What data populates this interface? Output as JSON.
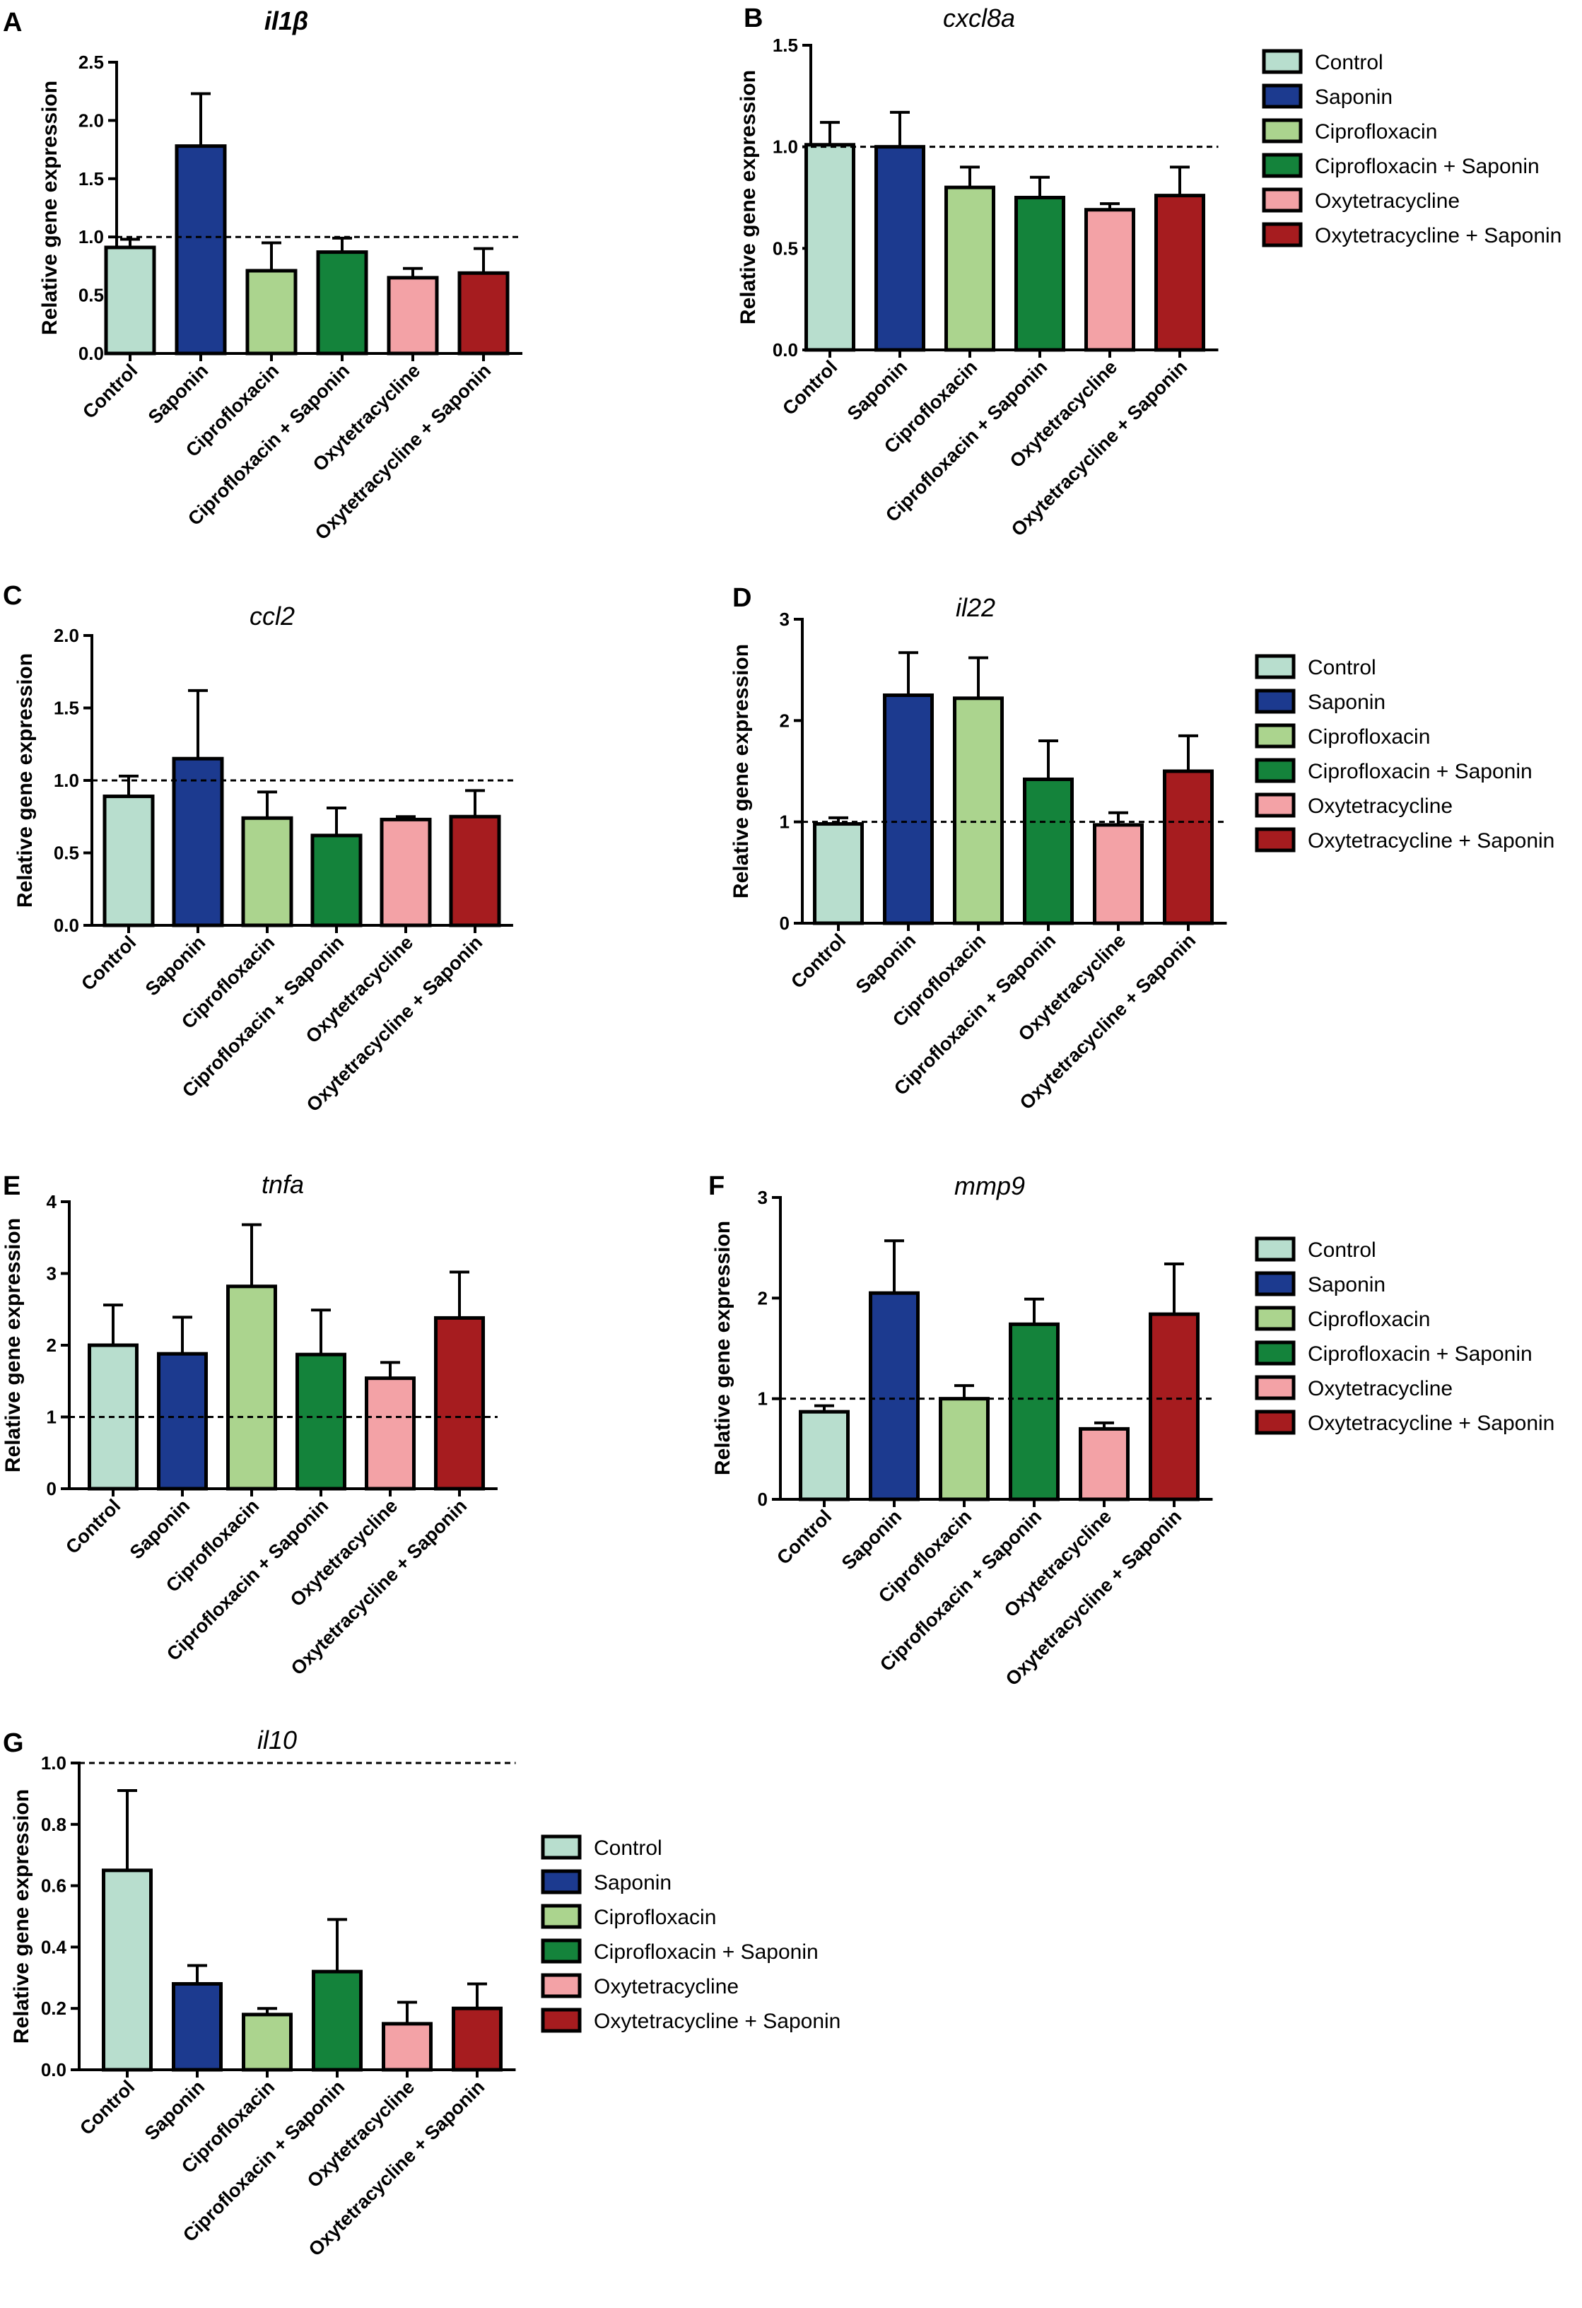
{
  "figure": {
    "colors": {
      "Control": "#b8dece",
      "Saponin": "#1c3a8f",
      "Ciprofloxacin": "#abd48e",
      "Ciprofloxacin + Saponin": "#14833b",
      "Oxytetracycline": "#f3a2a6",
      "Oxytetracycline + Saponin": "#a61c1f"
    }
  },
  "chart_data": [
    {
      "panel": "A",
      "type": "bar",
      "title": "il1β",
      "ylabel": "Relative gene expression",
      "ylim": [
        0,
        2.5
      ],
      "yticks": [
        "0.0",
        "0.5",
        "1.0",
        "1.5",
        "2.0",
        "2.5"
      ],
      "reference_line": 1.0,
      "categories": [
        "Control",
        "Saponin",
        "Ciprofloxacin",
        "Ciprofloxacin + Saponin",
        "Oxytetracycline",
        "Oxytetracycline + Saponin"
      ],
      "values": [
        0.91,
        1.78,
        0.71,
        0.87,
        0.65,
        0.69
      ],
      "errors": [
        0.07,
        0.45,
        0.24,
        0.12,
        0.08,
        0.21
      ]
    },
    {
      "panel": "B",
      "type": "bar",
      "title": "cxcl8a",
      "ylabel": "Relative gene expression",
      "ylim": [
        0,
        1.5
      ],
      "yticks": [
        "0.0",
        "0.5",
        "1.0",
        "1.5"
      ],
      "reference_line": 1.0,
      "categories": [
        "Control",
        "Saponin",
        "Ciprofloxacin",
        "Ciprofloxacin + Saponin",
        "Oxytetracycline",
        "Oxytetracycline + Saponin"
      ],
      "values": [
        1.01,
        1.0,
        0.8,
        0.75,
        0.69,
        0.76
      ],
      "errors": [
        0.11,
        0.17,
        0.1,
        0.1,
        0.03,
        0.14
      ],
      "legend": [
        "Control",
        "Saponin",
        "Ciprofloxacin",
        "Ciprofloxacin + Saponin",
        "Oxytetracycline",
        "Oxytetracycline + Saponin"
      ]
    },
    {
      "panel": "C",
      "type": "bar",
      "title": "ccl2",
      "ylabel": "Relative gene expression",
      "ylim": [
        0,
        2.0
      ],
      "yticks": [
        "0.0",
        "0.5",
        "1.0",
        "1.5",
        "2.0"
      ],
      "reference_line": 1.0,
      "categories": [
        "Control",
        "Saponin",
        "Ciprofloxacin",
        "Ciprofloxacin + Saponin",
        "Oxytetracycline",
        "Oxytetracycline + Saponin"
      ],
      "values": [
        0.89,
        1.15,
        0.74,
        0.62,
        0.73,
        0.75
      ],
      "errors": [
        0.14,
        0.47,
        0.18,
        0.19,
        0.02,
        0.18
      ]
    },
    {
      "panel": "D",
      "type": "bar",
      "title": "il22",
      "ylabel": "Relative gene expression",
      "ylim": [
        0,
        3
      ],
      "yticks": [
        "0",
        "1",
        "2",
        "3"
      ],
      "reference_line": 1.0,
      "categories": [
        "Control",
        "Saponin",
        "Ciprofloxacin",
        "Ciprofloxacin + Saponin",
        "Oxytetracycline",
        "Oxytetracycline + Saponin"
      ],
      "values": [
        0.98,
        2.25,
        2.22,
        1.42,
        0.97,
        1.5
      ],
      "errors": [
        0.06,
        0.42,
        0.4,
        0.38,
        0.12,
        0.35
      ],
      "legend": [
        "Control",
        "Saponin",
        "Ciprofloxacin",
        "Ciprofloxacin + Saponin",
        "Oxytetracycline",
        "Oxytetracycline + Saponin"
      ]
    },
    {
      "panel": "E",
      "type": "bar",
      "title": "tnfa",
      "ylabel": "Relative gene expression",
      "ylim": [
        0,
        4
      ],
      "yticks": [
        "0",
        "1",
        "2",
        "3",
        "4"
      ],
      "reference_line": 1.0,
      "categories": [
        "Control",
        "Saponin",
        "Ciprofloxacin",
        "Ciprofloxacin + Saponin",
        "Oxytetracycline",
        "Oxytetracycline + Saponin"
      ],
      "values": [
        2.0,
        1.88,
        2.82,
        1.87,
        1.54,
        2.38
      ],
      "errors": [
        0.56,
        0.51,
        0.86,
        0.62,
        0.22,
        0.64
      ]
    },
    {
      "panel": "F",
      "type": "bar",
      "title": "mmp9",
      "ylabel": "Relative gene expression",
      "ylim": [
        0,
        3
      ],
      "yticks": [
        "0",
        "1",
        "2",
        "3"
      ],
      "reference_line": 1.0,
      "categories": [
        "Control",
        "Saponin",
        "Ciprofloxacin",
        "Ciprofloxacin + Saponin",
        "Oxytetracycline",
        "Oxytetracycline + Saponin"
      ],
      "values": [
        0.87,
        2.05,
        1.0,
        1.74,
        0.7,
        1.84
      ],
      "errors": [
        0.06,
        0.52,
        0.13,
        0.25,
        0.06,
        0.5
      ],
      "legend": [
        "Control",
        "Saponin",
        "Ciprofloxacin",
        "Ciprofloxacin + Saponin",
        "Oxytetracycline",
        "Oxytetracycline + Saponin"
      ]
    },
    {
      "panel": "G",
      "type": "bar",
      "title": "il10",
      "ylabel": "Relative gene expression",
      "ylim": [
        0,
        1.0
      ],
      "yticks": [
        "0.0",
        "0.2",
        "0.4",
        "0.6",
        "0.8",
        "1.0"
      ],
      "reference_line": 1.0,
      "categories": [
        "Control",
        "Saponin",
        "Ciprofloxacin",
        "Ciprofloxacin + Saponin",
        "Oxytetracycline",
        "Oxytetracycline + Saponin"
      ],
      "values": [
        0.65,
        0.28,
        0.18,
        0.32,
        0.15,
        0.2
      ],
      "errors": [
        0.26,
        0.06,
        0.02,
        0.17,
        0.07,
        0.08
      ],
      "legend": [
        "Control",
        "Saponin",
        "Ciprofloxacin",
        "Ciprofloxacin + Saponin",
        "Oxytetracycline",
        "Oxytetracycline + Saponin"
      ]
    }
  ]
}
